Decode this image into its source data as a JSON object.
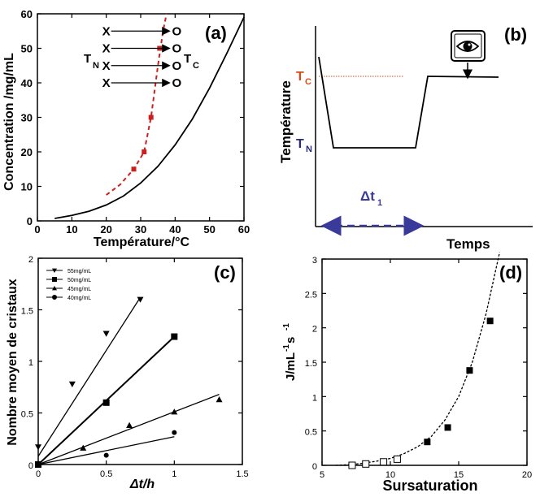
{
  "chart_data": [
    {
      "panel_label": "(a)",
      "type": "line",
      "xlabel": "Température/°C",
      "ylabel": "Concentration /mg/mL",
      "xlim": [
        0,
        60
      ],
      "ylim": [
        0,
        60
      ],
      "xticks": [
        "0",
        "10",
        "20",
        "30",
        "40",
        "50",
        "60"
      ],
      "yticks": [
        "0",
        "10",
        "20",
        "30",
        "40",
        "50",
        "60"
      ],
      "solubility_curve": {
        "x": [
          5,
          10,
          15,
          20,
          25,
          30,
          35,
          40,
          45,
          50,
          55,
          60
        ],
        "y": [
          0.7,
          1.6,
          2.8,
          4.6,
          7.2,
          11,
          15.8,
          22,
          29.5,
          38.5,
          48.5,
          59
        ]
      },
      "nucleation_points": {
        "x": [
          28,
          31,
          33,
          35.5
        ],
        "y": [
          15,
          20,
          30,
          50
        ]
      },
      "nucleation_curve": {
        "x": [
          20,
          24,
          28,
          31,
          33,
          35,
          36.5,
          37.5
        ],
        "y": [
          7.5,
          10.5,
          15,
          20,
          30,
          45,
          55,
          60
        ]
      },
      "arrows": [
        {
          "from": [
            20,
            55
          ],
          "to": [
            40,
            55
          ]
        },
        {
          "from": [
            20,
            50
          ],
          "to": [
            40,
            50
          ]
        },
        {
          "from": [
            20,
            45
          ],
          "to": [
            40,
            45
          ]
        },
        {
          "from": [
            20,
            40
          ],
          "to": [
            40,
            40
          ]
        }
      ],
      "start_marker": "X",
      "end_marker": "O",
      "label_tn": "T",
      "label_tn_sub": "N",
      "label_tc": "T",
      "label_tc_sub": "C"
    },
    {
      "panel_label": "(b)",
      "type": "line",
      "xlabel": "Temps",
      "ylabel": "Température",
      "label_tc": "T",
      "label_tc_sub": "C",
      "label_tn": "T",
      "label_tn_sub": "N",
      "dt_label": "Δt",
      "dt_sub": "1",
      "icon": "eye-icon",
      "colors": {
        "tc": "#d44a1a",
        "tn": "#2a2a7a",
        "arrow": "#3a3a9a"
      }
    },
    {
      "panel_label": "(c)",
      "type": "scatter",
      "xlabel": "Δt/h",
      "ylabel": "Nombre moyen de cristaux",
      "xlim": [
        0,
        1.5
      ],
      "ylim": [
        0,
        2
      ],
      "xticks": [
        "0",
        "0.5",
        "1",
        "1.5"
      ],
      "yticks": [
        "0",
        "0.5",
        "1",
        "1.5",
        "2"
      ],
      "series": [
        {
          "name": "55mg/mL",
          "marker": "triangle-down",
          "x": [
            0,
            0.25,
            0.5,
            0.75
          ],
          "y": [
            0.17,
            0.78,
            1.27,
            1.6
          ],
          "fit": [
            [
              0,
              0.08
            ],
            [
              0.75,
              1.62
            ]
          ]
        },
        {
          "name": "50mg/mL",
          "marker": "square",
          "x": [
            0,
            0.5,
            1
          ],
          "y": [
            0,
            0.6,
            1.24
          ],
          "fit": [
            [
              0,
              0
            ],
            [
              1,
              1.24
            ]
          ]
        },
        {
          "name": "45mg/mL",
          "marker": "triangle-up",
          "x": [
            0.33,
            0.67,
            1,
            1.33
          ],
          "y": [
            0.16,
            0.38,
            0.51,
            0.63
          ],
          "fit": [
            [
              0,
              0
            ],
            [
              1.33,
              0.68
            ]
          ]
        },
        {
          "name": "40mg/mL",
          "marker": "circle",
          "x": [
            0,
            0.5,
            1
          ],
          "y": [
            0,
            0.09,
            0.31
          ],
          "fit": [
            [
              0,
              0
            ],
            [
              1,
              0.27
            ]
          ]
        }
      ]
    },
    {
      "panel_label": "(d)",
      "type": "scatter",
      "xlabel": "Sursaturation",
      "ylabel": "J/mL",
      "ylabel_sup1": "-1",
      "ylabel_mid": " s",
      "ylabel_sup2": "-1",
      "xlim": [
        5,
        20
      ],
      "ylim": [
        0,
        3
      ],
      "xticks": [
        "5",
        "10",
        "15",
        "20"
      ],
      "yticks": [
        "0",
        "0.5",
        "1",
        "1.5",
        "2",
        "2.5",
        "3"
      ],
      "series": [
        {
          "name": "open",
          "marker": "square-open",
          "x": [
            7.2,
            8.2,
            9.5,
            10.5
          ],
          "y": [
            0.0,
            0.02,
            0.05,
            0.09
          ]
        },
        {
          "name": "filled",
          "marker": "square",
          "x": [
            12.7,
            14.2,
            15.8,
            17.3
          ],
          "y": [
            0.34,
            0.55,
            1.38,
            2.1
          ]
        }
      ],
      "fit_curve": {
        "x": [
          6,
          7,
          8,
          9,
          10,
          11,
          12,
          13,
          14,
          15,
          16,
          17,
          17.5,
          18
        ],
        "y": [
          0.0,
          0.01,
          0.03,
          0.06,
          0.1,
          0.17,
          0.27,
          0.42,
          0.66,
          1.0,
          1.5,
          2.2,
          2.65,
          3.1
        ]
      }
    }
  ]
}
